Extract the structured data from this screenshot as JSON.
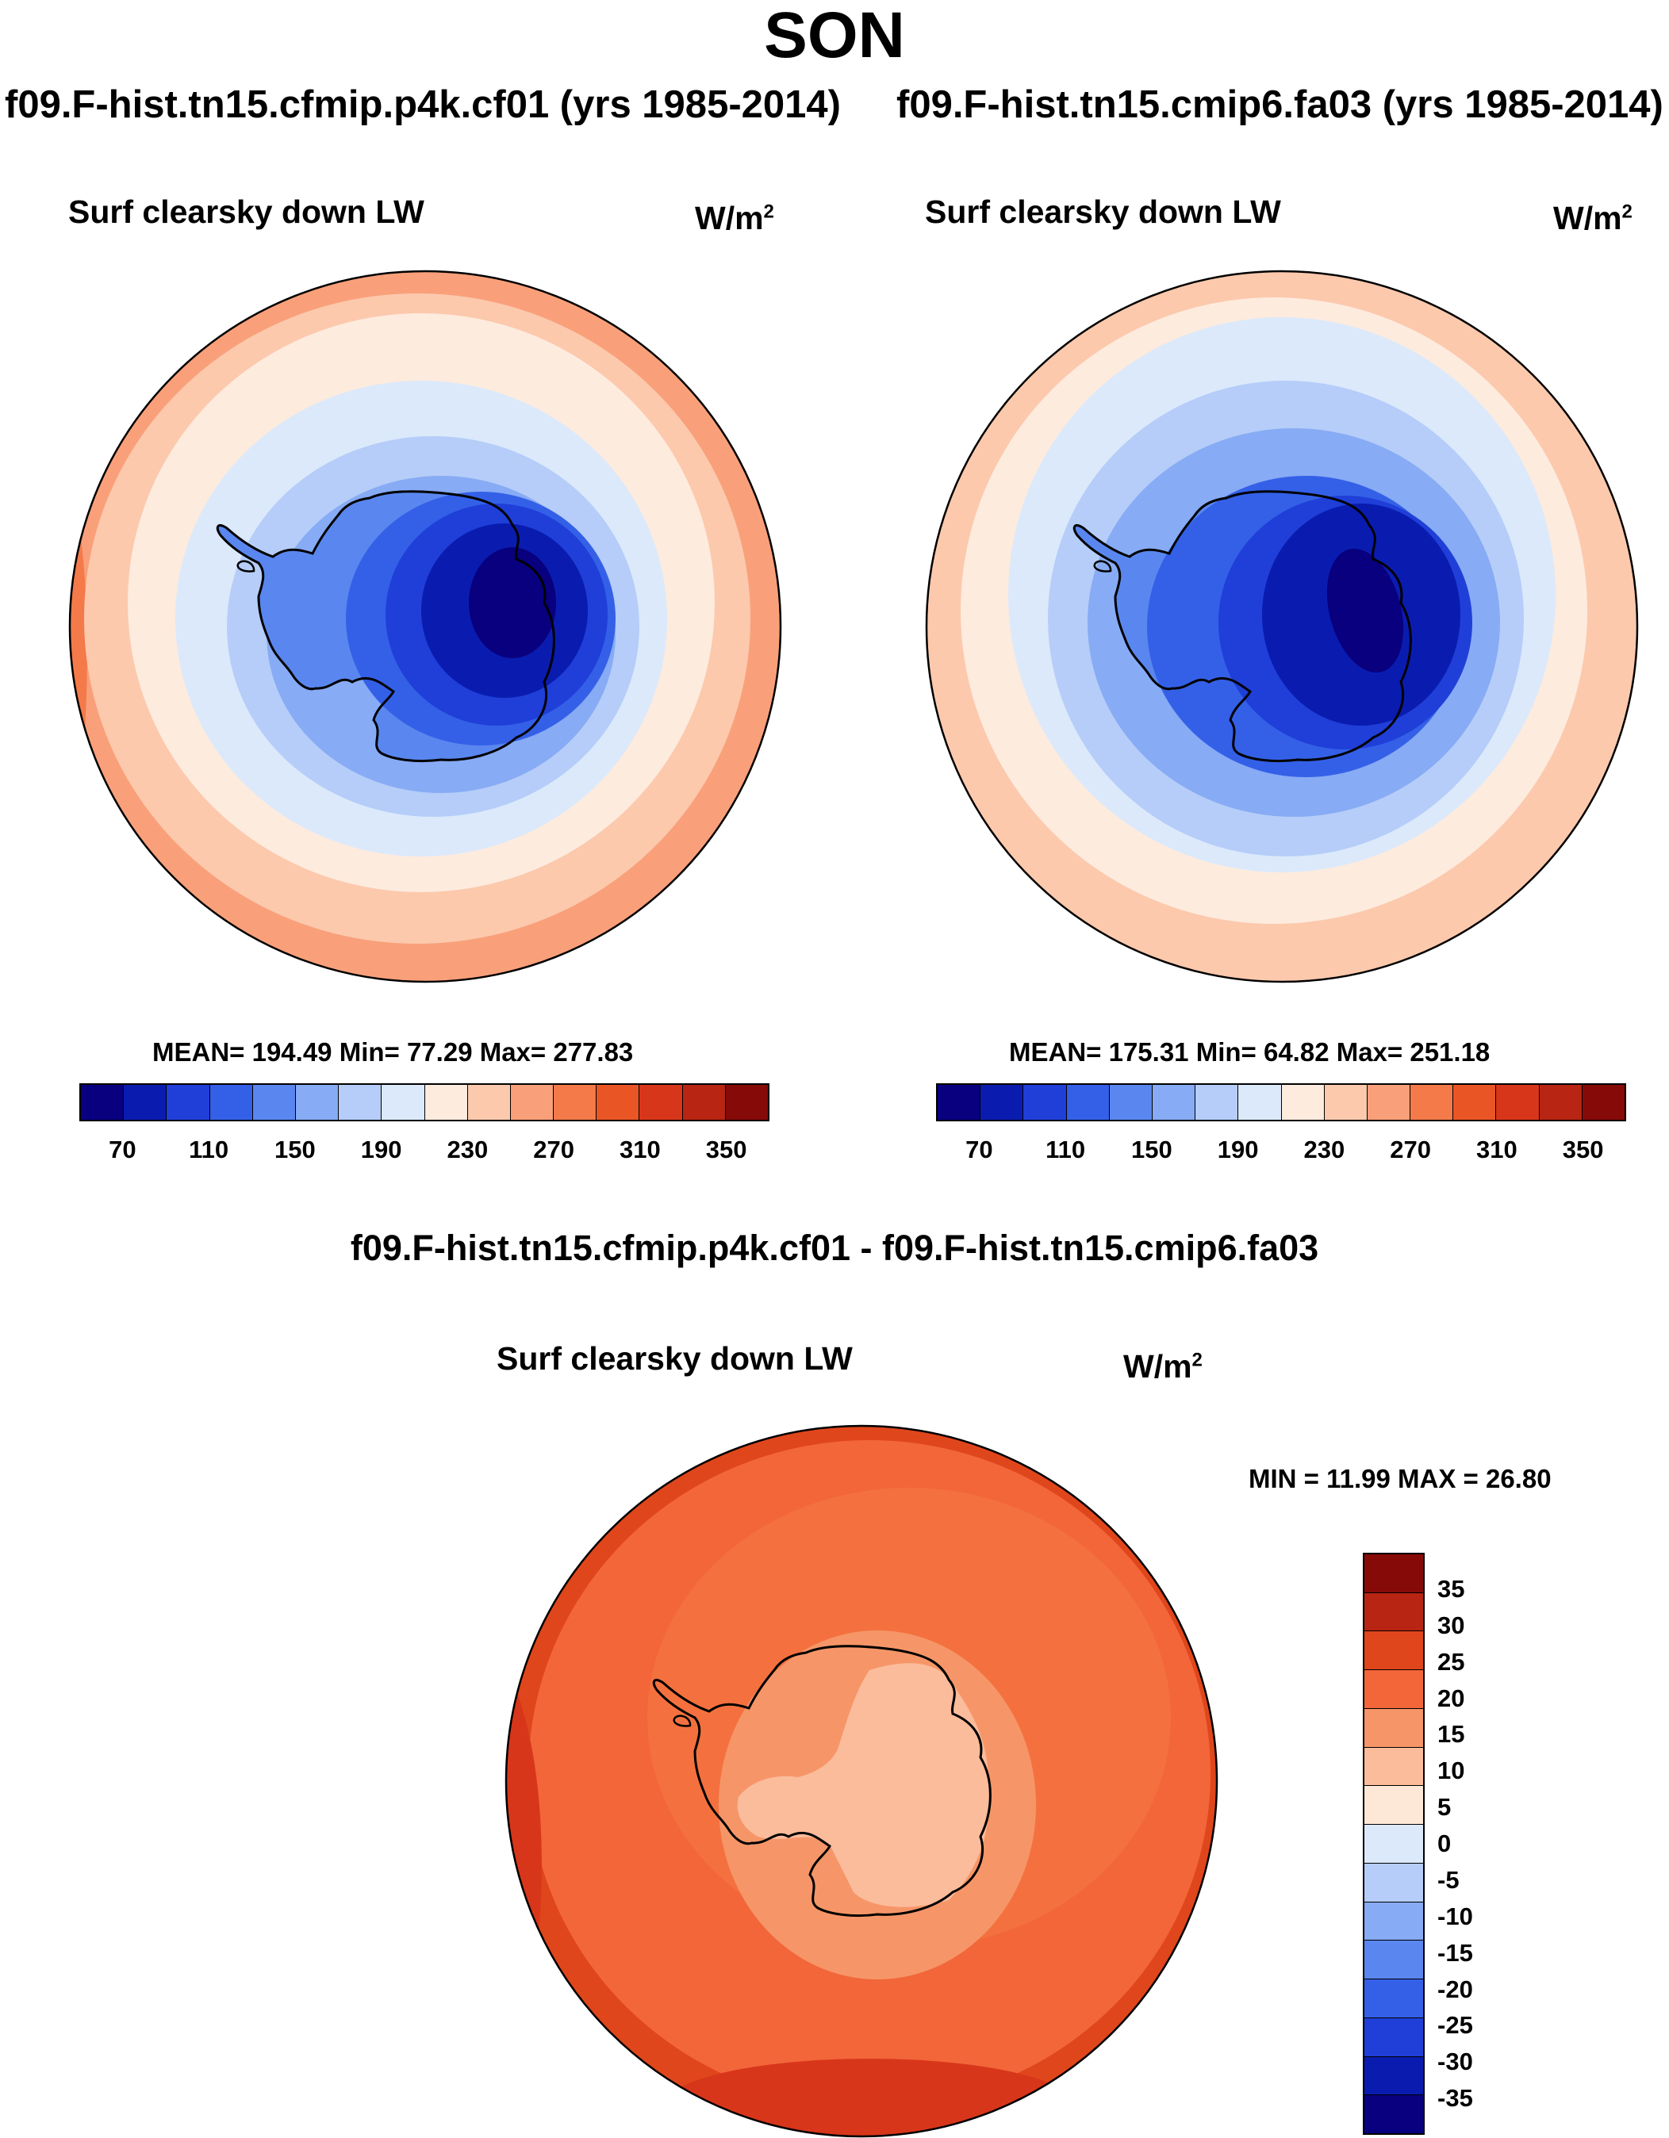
{
  "season": "SON",
  "left_run_title": "f09.F-hist.tn15.cfmip.p4k.cf01 (yrs 1985-2014)",
  "right_run_title": "f09.F-hist.tn15.cmip6.fa03 (yrs 1985-2014)",
  "diff_title": "f09.F-hist.tn15.cfmip.p4k.cf01 - f09.F-hist.tn15.cmip6.fa03",
  "panels": {
    "left": {
      "variable": "Surf clearsky down LW",
      "units": "W/m",
      "units_exp": "2",
      "stats": "MEAN= 194.49  Min=  77.29  Max= 277.83"
    },
    "right": {
      "variable": "Surf clearsky down LW",
      "units": "W/m",
      "units_exp": "2",
      "stats": "MEAN= 175.31  Min=  64.82  Max= 251.18"
    },
    "diff": {
      "variable": "Surf clearsky down LW",
      "units": "W/m",
      "units_exp": "2",
      "stats": "MIN =  11.99 MAX =  26.80"
    }
  },
  "abs_colorbar": {
    "colors": [
      "#08007f",
      "#0a1cb0",
      "#1f3fd8",
      "#3460e8",
      "#5a87ef",
      "#87abf4",
      "#b5cdf8",
      "#dbe9fb",
      "#fdebde",
      "#fcc9ad",
      "#f9a07a",
      "#f47a4a",
      "#ea5525",
      "#d8361a",
      "#b82513",
      "#850a08"
    ],
    "labels": [
      "70",
      "110",
      "150",
      "190",
      "230",
      "270",
      "310",
      "350"
    ]
  },
  "diff_colorbar": {
    "colors": [
      "#850a08",
      "#b82513",
      "#e0461c",
      "#f2663a",
      "#f69668",
      "#fbbc9c",
      "#fde7d7",
      "#dbe9fb",
      "#b5cdf8",
      "#87abf4",
      "#5a87ef",
      "#3460e8",
      "#1f3fd8",
      "#0a1cb0",
      "#08007f"
    ],
    "labels": [
      "35",
      "30",
      "25",
      "20",
      "15",
      "10",
      "5",
      "0",
      "-5",
      "-10",
      "-15",
      "-20",
      "-25",
      "-30",
      "-35"
    ]
  },
  "chart_data": [
    {
      "type": "heatmap",
      "title": "Surf clearsky down LW",
      "units": "W/m^2",
      "dataset": "f09.F-hist.tn15.cfmip.p4k.cf01",
      "period": "yrs 1985-2014",
      "mean": 194.49,
      "min": 77.29,
      "max": 277.83,
      "contour_levels": [
        50,
        70,
        90,
        110,
        130,
        150,
        170,
        190,
        210,
        230,
        250,
        270,
        290,
        310,
        330,
        350
      ]
    },
    {
      "type": "heatmap",
      "title": "Surf clearsky down LW",
      "units": "W/m^2",
      "dataset": "f09.F-hist.tn15.cmip6.fa03",
      "period": "yrs 1985-2014",
      "mean": 175.31,
      "min": 64.82,
      "max": 251.18,
      "contour_levels": [
        50,
        70,
        90,
        110,
        130,
        150,
        170,
        190,
        210,
        230,
        250,
        270,
        290,
        310,
        330,
        350
      ]
    },
    {
      "type": "heatmap",
      "title": "Surf clearsky down LW",
      "units": "W/m^2",
      "dataset": "f09.F-hist.tn15.cfmip.p4k.cf01 - f09.F-hist.tn15.cmip6.fa03",
      "min": 11.99,
      "max": 26.8,
      "contour_levels": [
        -35,
        -30,
        -25,
        -20,
        -15,
        -10,
        -5,
        0,
        5,
        10,
        15,
        20,
        25,
        30,
        35
      ]
    }
  ]
}
